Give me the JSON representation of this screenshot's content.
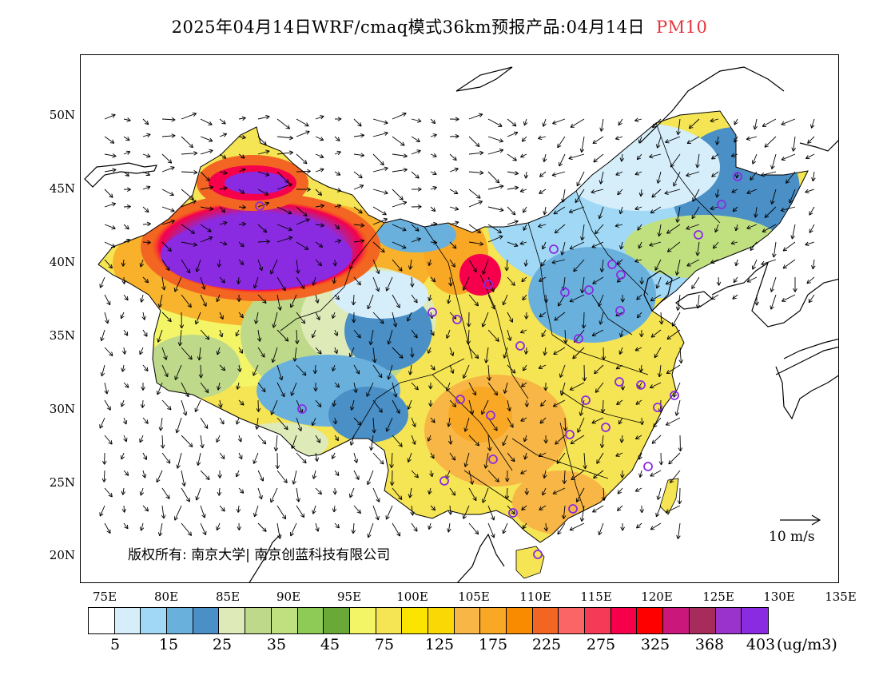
{
  "title": {
    "main": "2025年04月14日WRF/cmaq模式36km预报产品:04月14日",
    "pollutant": "PM10",
    "pollutant_color": "#e8343a"
  },
  "map": {
    "lat_labels": [
      "50N",
      "45N",
      "40N",
      "35N",
      "30N",
      "25N",
      "20N"
    ],
    "lon_labels": [
      "75E",
      "80E",
      "85E",
      "90E",
      "95E",
      "100E",
      "105E",
      "110E",
      "115E",
      "120E",
      "125E",
      "130E",
      "135E"
    ],
    "copyright": "版权所有: 南京大学| 南京创蓝科技有限公司",
    "wind_reference": "10 m/s",
    "station_marker_color": "#8a2be2"
  },
  "colorbar": {
    "colors": [
      "#ffffff",
      "#d6eefa",
      "#a0d8f5",
      "#6ab0dd",
      "#4a8fc6",
      "#dfeab9",
      "#bfd98a",
      "#c0e080",
      "#8ecb56",
      "#6aa838",
      "#f3f567",
      "#f5e453",
      "#fbe400",
      "#f9d806",
      "#f7b645",
      "#f9a825",
      "#f98b00",
      "#f26522",
      "#fb6565",
      "#f43a56",
      "#f6004c",
      "#ff0000",
      "#c9177c",
      "#a72c5c",
      "#9a33cc",
      "#8a2be2"
    ],
    "labels": [
      "5",
      "15",
      "25",
      "35",
      "45",
      "75",
      "125",
      "175",
      "225",
      "275",
      "325",
      "368",
      "403"
    ],
    "unit": "(ug/m3)"
  }
}
